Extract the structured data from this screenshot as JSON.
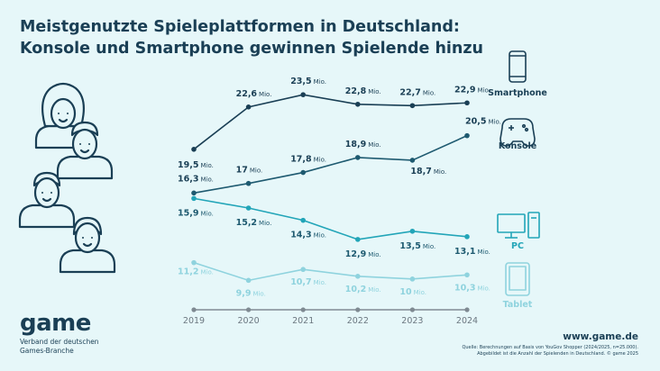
{
  "title_lines": [
    "Meistgenutzte Spieleplattformen in Deutschland:",
    "Konsole und Smartphone gewinnen Spielende hinzu"
  ],
  "chart_data": {
    "type": "line",
    "x": [
      "2019",
      "2020",
      "2021",
      "2022",
      "2023",
      "2024"
    ],
    "unit": "Mio.",
    "series": [
      {
        "name": "Smartphone",
        "values": [
          19.5,
          22.6,
          23.5,
          22.8,
          22.7,
          22.9
        ],
        "labels": [
          "19,5",
          "22,6",
          "23,5",
          "22,8",
          "22,7",
          "22,9"
        ],
        "color": "#1a3f55",
        "icon": "smartphone-icon"
      },
      {
        "name": "Konsole",
        "values": [
          16.3,
          17,
          17.8,
          18.9,
          18.7,
          20.5
        ],
        "labels": [
          "16,3",
          "17",
          "17,8",
          "18,9",
          "18,7",
          "20,5"
        ],
        "color": "#1e5a70",
        "icon": "gamepad-icon"
      },
      {
        "name": "PC",
        "values": [
          15.9,
          15.2,
          14.3,
          12.9,
          13.5,
          13.1
        ],
        "labels": [
          "15,9",
          "15,2",
          "14,3",
          "12,9",
          "13,5",
          "13,1"
        ],
        "color": "#22a5b8",
        "icon": "desktop-pc-icon"
      },
      {
        "name": "Tablet",
        "values": [
          11.2,
          9.9,
          10.7,
          10.2,
          10,
          10.3
        ],
        "labels": [
          "11,2",
          "9,9",
          "10,7",
          "10,2",
          "10",
          "10,3"
        ],
        "color": "#8fd3de",
        "icon": "tablet-icon"
      }
    ]
  },
  "logo": {
    "word": "game",
    "sub_lines": [
      "Verband der deutschen",
      "Games-Branche"
    ]
  },
  "website": "www.game.de",
  "source_lines": [
    "Quelle: Berechnungen auf Basis von YouGov Shopper (2024/2025, n=25.000).",
    "Abgebildet ist die Anzahl der Spielenden in Deutschland. © game 2025"
  ]
}
